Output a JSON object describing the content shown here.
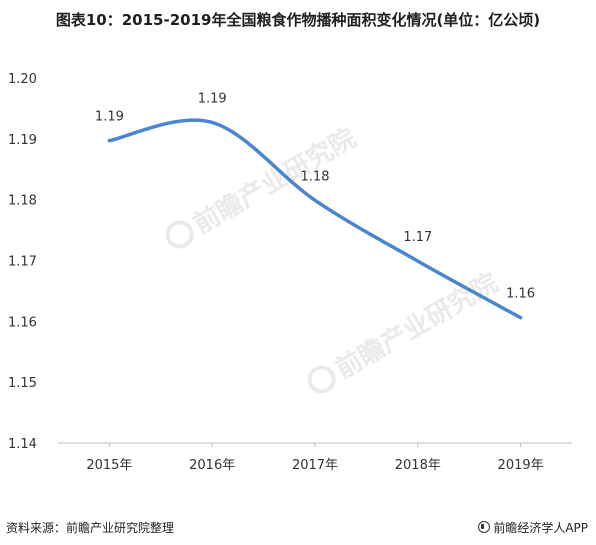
{
  "title": "图表10：2015-2019年全国粮食作物播种面积变化情况(单位：亿公顷)",
  "footer": {
    "source": "资料来源：前瞻产业研究院整理",
    "brand": "前瞻经济学人APP"
  },
  "watermark": {
    "text": "前瞻产业研究院"
  },
  "colors": {
    "line": "#4a86cf",
    "grid": "#e6e6e6",
    "axis_text": "#333333"
  },
  "chart_data": {
    "type": "line",
    "title": "图表10：2015-2019年全国粮食作物播种面积变化情况(单位：亿公顷)",
    "categories": [
      "2015年",
      "2016年",
      "2017年",
      "2018年",
      "2019年"
    ],
    "values": [
      1.19,
      1.19,
      1.18,
      1.17,
      1.16
    ],
    "plotted_values": [
      1.1897,
      1.1927,
      1.1799,
      1.1699,
      1.1606
    ],
    "data_labels": [
      "1.19",
      "1.19",
      "1.18",
      "1.17",
      "1.16"
    ],
    "y_ticks": [
      "1.20",
      "1.19",
      "1.18",
      "1.17",
      "1.16",
      "1.15",
      "1.14"
    ],
    "ylim": [
      1.14,
      1.2
    ],
    "grid": false,
    "smooth": true,
    "legend": "none"
  }
}
